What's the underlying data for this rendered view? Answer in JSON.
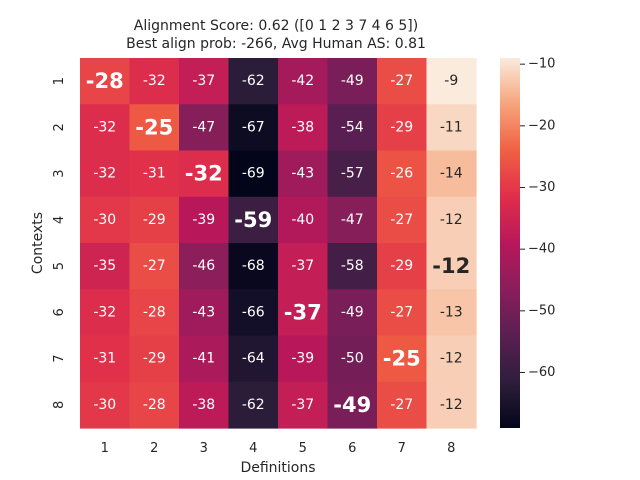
{
  "chart_data": {
    "type": "heatmap",
    "title_line1": "Alignment Score: 0.62 ([0 1 2 3 7 4 6 5])",
    "title_line2": "Best align prob: -266, Avg Human AS: 0.81",
    "xlabel": "Definitions",
    "ylabel": "Contexts",
    "x_tick_labels": [
      "1",
      "2",
      "3",
      "4",
      "5",
      "6",
      "7",
      "8"
    ],
    "y_tick_labels": [
      "1",
      "2",
      "3",
      "4",
      "5",
      "6",
      "7",
      "8"
    ],
    "values": [
      [
        -28,
        -32,
        -37,
        -62,
        -42,
        -49,
        -27,
        -9
      ],
      [
        -32,
        -25,
        -47,
        -67,
        -38,
        -54,
        -29,
        -11
      ],
      [
        -32,
        -31,
        -32,
        -69,
        -43,
        -57,
        -26,
        -14
      ],
      [
        -30,
        -29,
        -39,
        -59,
        -40,
        -47,
        -27,
        -12
      ],
      [
        -35,
        -27,
        -46,
        -68,
        -37,
        -58,
        -29,
        -12
      ],
      [
        -32,
        -28,
        -43,
        -66,
        -37,
        -49,
        -27,
        -13
      ],
      [
        -31,
        -29,
        -41,
        -64,
        -39,
        -50,
        -25,
        -12
      ],
      [
        -30,
        -28,
        -38,
        -62,
        -37,
        -49,
        -27,
        -12
      ]
    ],
    "highlighted_cells": [
      [
        0,
        0
      ],
      [
        1,
        1
      ],
      [
        2,
        2
      ],
      [
        3,
        3
      ],
      [
        4,
        7
      ],
      [
        5,
        4
      ],
      [
        6,
        6
      ],
      [
        7,
        5
      ]
    ],
    "color_range": [
      -69,
      -9
    ],
    "colormap": "rocket",
    "colorbar_ticks": [
      -10,
      -20,
      -30,
      -40,
      -50,
      -60
    ],
    "colorbar_tick_labels": [
      "−10",
      "−20",
      "−30",
      "−40",
      "−50",
      "−60"
    ],
    "grid": false,
    "text_color_light": "#ffffff",
    "text_color_dark": "#262626"
  }
}
